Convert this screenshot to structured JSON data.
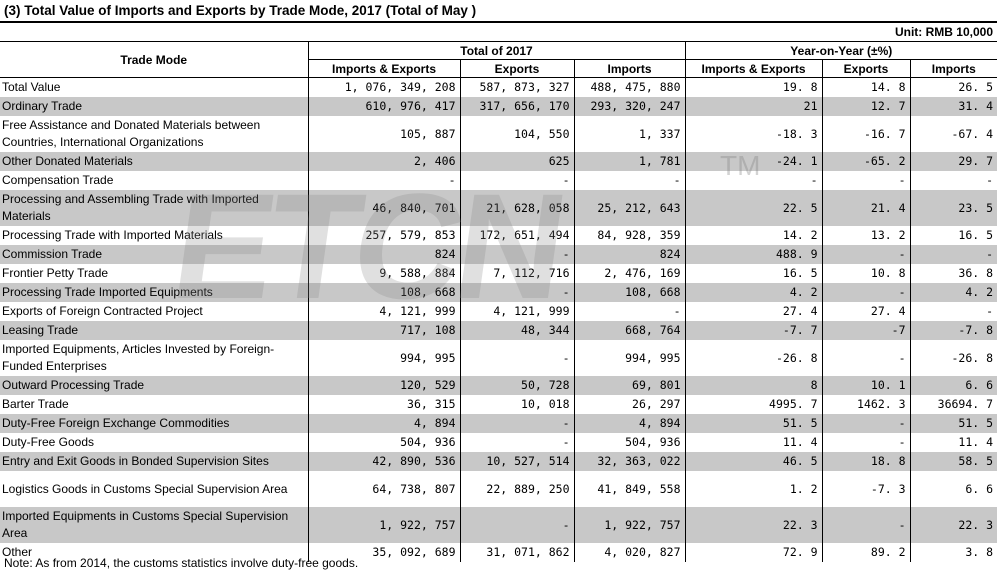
{
  "title": "(3) Total Value of Imports and Exports by Trade Mode,  2017 (Total of May )",
  "unit": "Unit: RMB 10,000",
  "header": {
    "trade_mode": "Trade Mode",
    "total_group": "Total of  2017",
    "yoy_group": "Year-on-Year (±%)",
    "col_ie": "Imports & Exports",
    "col_ex": "Exports",
    "col_im": "Imports",
    "col_yoy_ie": "Imports & Exports",
    "col_yoy_ex": "Exports",
    "col_yoy_im": "Imports"
  },
  "rows": [
    {
      "label": "Total Value",
      "ie": "1, 076, 349, 208",
      "ex": "587, 873, 327",
      "im": "488, 475, 880",
      "yie": "19. 8",
      "yex": "14. 8",
      "yim": "26. 5"
    },
    {
      "label": "Ordinary Trade",
      "ie": "610, 976, 417",
      "ex": "317, 656, 170",
      "im": "293, 320, 247",
      "yie": "21",
      "yex": "12. 7",
      "yim": "31. 4"
    },
    {
      "label": "Free Assistance and Donated Materials between Countries, International Organizations",
      "ie": "105, 887",
      "ex": "104, 550",
      "im": "1, 337",
      "yie": "-18. 3",
      "yex": "-16. 7",
      "yim": "-67. 4"
    },
    {
      "label": "Other Donated Materials",
      "ie": "2, 406",
      "ex": "625",
      "im": "1, 781",
      "yie": "-24. 1",
      "yex": "-65. 2",
      "yim": "29. 7"
    },
    {
      "label": "Compensation Trade",
      "ie": "-",
      "ex": "-",
      "im": "-",
      "yie": "-",
      "yex": "-",
      "yim": "-"
    },
    {
      "label": "Processing and Assembling Trade with Imported Materials",
      "ie": "46, 840, 701",
      "ex": "21, 628, 058",
      "im": "25, 212, 643",
      "yie": "22. 5",
      "yex": "21. 4",
      "yim": "23. 5"
    },
    {
      "label": "Processing Trade with Imported Materials",
      "ie": "257, 579, 853",
      "ex": "172, 651, 494",
      "im": "84, 928, 359",
      "yie": "14. 2",
      "yex": "13. 2",
      "yim": "16. 5"
    },
    {
      "label": "Commission Trade",
      "ie": "824",
      "ex": "-",
      "im": "824",
      "yie": "488. 9",
      "yex": "-",
      "yim": "-"
    },
    {
      "label": "Frontier Petty Trade",
      "ie": "9, 588, 884",
      "ex": "7, 112, 716",
      "im": "2, 476, 169",
      "yie": "16. 5",
      "yex": "10. 8",
      "yim": "36. 8"
    },
    {
      "label": "Processing Trade Imported Equipments",
      "ie": "108, 668",
      "ex": "-",
      "im": "108, 668",
      "yie": "4. 2",
      "yex": "-",
      "yim": "4. 2"
    },
    {
      "label": "Exports of Foreign Contracted Project",
      "ie": "4, 121, 999",
      "ex": "4, 121, 999",
      "im": "-",
      "yie": "27. 4",
      "yex": "27. 4",
      "yim": "-"
    },
    {
      "label": "Leasing Trade",
      "ie": "717, 108",
      "ex": "48, 344",
      "im": "668, 764",
      "yie": "-7. 7",
      "yex": "-7",
      "yim": "-7. 8"
    },
    {
      "label": "Imported Equipments, Articles Invested by Foreign-Funded Enterprises",
      "ie": "994, 995",
      "ex": "-",
      "im": "994, 995",
      "yie": "-26. 8",
      "yex": "-",
      "yim": "-26. 8"
    },
    {
      "label": "Outward Processing Trade",
      "ie": "120, 529",
      "ex": "50, 728",
      "im": "69, 801",
      "yie": "8",
      "yex": "10. 1",
      "yim": "6. 6"
    },
    {
      "label": "Barter Trade",
      "ie": "36, 315",
      "ex": "10, 018",
      "im": "26, 297",
      "yie": "4995. 7",
      "yex": "1462. 3",
      "yim": "36694. 7"
    },
    {
      "label": "Duty-Free Foreign Exchange Commodities",
      "ie": "4, 894",
      "ex": "-",
      "im": "4, 894",
      "yie": "51. 5",
      "yex": "-",
      "yim": "51. 5"
    },
    {
      "label": "Duty-Free Goods",
      "ie": "504, 936",
      "ex": "-",
      "im": "504, 936",
      "yie": "11. 4",
      "yex": "-",
      "yim": "11. 4"
    },
    {
      "label": "Entry and Exit Goods in Bonded Supervision Sites",
      "ie": "42, 890, 536",
      "ex": "10, 527, 514",
      "im": "32, 363, 022",
      "yie": "46. 5",
      "yex": "18. 8",
      "yim": "58. 5"
    },
    {
      "label": "Logistics Goods in Customs Special Supervision Area",
      "ie": "64, 738, 807",
      "ex": "22, 889, 250",
      "im": "41, 849, 558",
      "yie": "1. 2",
      "yex": "-7. 3",
      "yim": "6. 6"
    },
    {
      "label": "Imported Equipments in Customs Special Supervision Area",
      "ie": "1, 922, 757",
      "ex": "-",
      "im": "1, 922, 757",
      "yie": "22. 3",
      "yex": "-",
      "yim": "22. 3"
    },
    {
      "label": "Other",
      "ie": "35, 092, 689",
      "ex": "31, 071, 862",
      "im": "4, 020, 827",
      "yie": "72. 9",
      "yex": "89. 2",
      "yim": "3. 8"
    }
  ],
  "note": "Note: As from 2014, the customs statistics involve duty-free goods.",
  "watermark": "ETCN",
  "watermark_tm": "TM"
}
